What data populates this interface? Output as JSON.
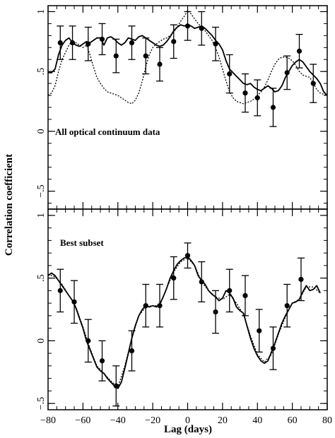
{
  "figure": {
    "ylabel": "Correlation coefficient",
    "xlabel": "Lag (days)"
  },
  "chart_data": [
    {
      "type": "line",
      "panel": "top",
      "annotation": "All optical continuum data",
      "xlim": [
        -80,
        80
      ],
      "ylim": [
        -0.65,
        1.05
      ],
      "x_ticks": [
        -80,
        -60,
        -40,
        -20,
        0,
        20,
        40,
        60,
        80
      ],
      "x_tick_labels": [
        "",
        "",
        "",
        "",
        "",
        "",
        "",
        "",
        ""
      ],
      "y_ticks": [
        -0.5,
        0,
        0.5,
        1
      ],
      "y_tick_labels": [
        "−.5",
        "0",
        ".5",
        "1"
      ],
      "series": [
        {
          "style": "solid",
          "x": [
            -80,
            -78,
            -76,
            -74,
            -72,
            -70,
            -68,
            -66,
            -64,
            -62,
            -60,
            -58,
            -56,
            -54,
            -52,
            -50,
            -48,
            -46,
            -44,
            -42,
            -40,
            -38,
            -36,
            -34,
            -32,
            -30,
            -28,
            -26,
            -24,
            -22,
            -20,
            -18,
            -16,
            -14,
            -12,
            -10,
            -8,
            -6,
            -4,
            -2,
            0,
            2,
            4,
            6,
            8,
            10,
            12,
            14,
            16,
            18,
            20,
            22,
            24,
            26,
            28,
            30,
            32,
            34,
            36,
            38,
            40,
            42,
            44,
            46,
            48,
            50,
            52,
            54,
            56,
            58,
            60,
            62,
            64,
            66,
            68,
            70,
            72,
            74,
            76,
            78,
            80
          ],
          "y": [
            0.49,
            0.49,
            0.52,
            0.64,
            0.72,
            0.76,
            0.78,
            0.74,
            0.72,
            0.71,
            0.73,
            0.75,
            0.74,
            0.76,
            0.78,
            0.78,
            0.72,
            0.78,
            0.79,
            0.77,
            0.74,
            0.72,
            0.74,
            0.78,
            0.77,
            0.76,
            0.79,
            0.8,
            0.78,
            0.76,
            0.74,
            0.72,
            0.71,
            0.72,
            0.75,
            0.79,
            0.84,
            0.87,
            0.89,
            0.88,
            0.89,
            0.88,
            0.86,
            0.87,
            0.88,
            0.86,
            0.83,
            0.8,
            0.76,
            0.73,
            0.68,
            0.59,
            0.52,
            0.49,
            0.46,
            0.43,
            0.4,
            0.39,
            0.4,
            0.37,
            0.35,
            0.34,
            0.36,
            0.38,
            0.36,
            0.33,
            0.34,
            0.38,
            0.45,
            0.5,
            0.55,
            0.58,
            0.6,
            0.58,
            0.54,
            0.5,
            0.47,
            0.44,
            0.4,
            0.33,
            0.3
          ]
        },
        {
          "style": "dotted",
          "x": [
            -80,
            -78,
            -76,
            -74,
            -72,
            -70,
            -68,
            -66,
            -64,
            -62,
            -60,
            -58,
            -56,
            -54,
            -52,
            -50,
            -48,
            -46,
            -44,
            -42,
            -40,
            -38,
            -36,
            -34,
            -32,
            -30,
            -28,
            -26,
            -24,
            -22,
            -20,
            -18,
            -16,
            -14,
            -12,
            -10,
            -8,
            -6,
            -4,
            -2,
            0,
            2,
            4,
            6,
            8,
            10,
            12,
            14,
            16,
            18,
            20,
            22,
            24,
            26,
            28,
            30,
            32,
            34,
            36,
            38,
            40,
            42,
            44,
            46,
            48,
            50,
            52,
            54,
            56,
            58,
            60,
            62,
            64,
            66,
            68,
            70,
            72,
            74,
            76,
            78,
            80
          ],
          "y": [
            0.3,
            0.32,
            0.38,
            0.5,
            0.6,
            0.66,
            0.72,
            0.76,
            0.74,
            0.72,
            0.7,
            0.72,
            0.64,
            0.54,
            0.45,
            0.4,
            0.36,
            0.33,
            0.32,
            0.31,
            0.3,
            0.28,
            0.26,
            0.24,
            0.23,
            0.26,
            0.32,
            0.42,
            0.54,
            0.64,
            0.7,
            0.73,
            0.75,
            0.77,
            0.78,
            0.8,
            0.83,
            0.87,
            0.92,
            0.96,
            1.01,
            0.98,
            0.94,
            0.9,
            0.87,
            0.84,
            0.8,
            0.76,
            0.7,
            0.62,
            0.52,
            0.42,
            0.33,
            0.28,
            0.25,
            0.24,
            0.23,
            0.24,
            0.25,
            0.27,
            0.3,
            0.33,
            0.37,
            0.43,
            0.5,
            0.56,
            0.6,
            0.62,
            0.62,
            0.61,
            0.59,
            0.55,
            0.5,
            0.47,
            0.46,
            0.45,
            0.4,
            0.35,
            0.32,
            0.31,
            0.3
          ]
        }
      ],
      "points": {
        "x": [
          -73,
          -66,
          -57,
          -49,
          -41,
          -32,
          -24,
          -16,
          -8,
          0,
          8,
          16,
          24,
          33,
          40,
          49,
          57,
          64,
          72
        ],
        "y": [
          0.74,
          0.74,
          0.73,
          0.77,
          0.63,
          0.74,
          0.63,
          0.56,
          0.75,
          0.88,
          0.86,
          0.73,
          0.48,
          0.32,
          0.28,
          0.2,
          0.49,
          0.67,
          0.4
        ],
        "err": [
          0.14,
          0.14,
          0.14,
          0.13,
          0.14,
          0.14,
          0.15,
          0.14,
          0.14,
          0.12,
          0.14,
          0.14,
          0.16,
          0.16,
          0.15,
          0.16,
          0.14,
          0.14,
          0.16
        ]
      }
    },
    {
      "type": "line",
      "panel": "bottom",
      "annotation": "Best subset",
      "xlim": [
        -80,
        80
      ],
      "ylim": [
        -0.55,
        1.05
      ],
      "x_ticks": [
        -80,
        -60,
        -40,
        -20,
        0,
        20,
        40,
        60,
        80
      ],
      "x_tick_labels": [
        "−80",
        "−60",
        "−40",
        "−20",
        "0",
        "20",
        "40",
        "60",
        "80"
      ],
      "y_ticks": [
        -0.5,
        0,
        0.5,
        1
      ],
      "y_tick_labels": [
        "−.5",
        "0",
        ".5",
        "1"
      ],
      "series": [
        {
          "style": "solid",
          "x": [
            -80,
            -78,
            -76,
            -74,
            -72,
            -70,
            -68,
            -66,
            -64,
            -62,
            -60,
            -58,
            -56,
            -54,
            -52,
            -50,
            -48,
            -46,
            -44,
            -42,
            -40,
            -38,
            -36,
            -34,
            -32,
            -30,
            -28,
            -26,
            -24,
            -22,
            -20,
            -18,
            -16,
            -14,
            -12,
            -10,
            -8,
            -6,
            -4,
            -2,
            0,
            2,
            4,
            6,
            8,
            10,
            12,
            14,
            16,
            18,
            20,
            22,
            24,
            26,
            28,
            30,
            32,
            34,
            36,
            38,
            40,
            42,
            44,
            46,
            48,
            50,
            52,
            54,
            56,
            58,
            60,
            62,
            64,
            66,
            68,
            70,
            72,
            74,
            76
          ],
          "y": [
            0.52,
            0.54,
            0.52,
            0.48,
            0.44,
            0.4,
            0.36,
            0.32,
            0.26,
            0.18,
            0.1,
            0.0,
            -0.07,
            -0.14,
            -0.21,
            -0.24,
            -0.26,
            -0.3,
            -0.33,
            -0.36,
            -0.38,
            -0.33,
            -0.22,
            -0.1,
            0.02,
            0.12,
            0.2,
            0.25,
            0.28,
            0.27,
            0.28,
            0.27,
            0.29,
            0.35,
            0.42,
            0.5,
            0.56,
            0.61,
            0.64,
            0.66,
            0.67,
            0.64,
            0.6,
            0.52,
            0.48,
            0.45,
            0.4,
            0.37,
            0.35,
            0.32,
            0.34,
            0.4,
            0.38,
            0.34,
            0.27,
            0.24,
            0.22,
            0.12,
            0.02,
            -0.06,
            -0.12,
            -0.16,
            -0.18,
            -0.16,
            -0.09,
            -0.02,
            0.06,
            0.14,
            0.2,
            0.25,
            0.3,
            0.31,
            0.33,
            0.39,
            0.44,
            0.4,
            0.41,
            0.44,
            0.38
          ]
        },
        {
          "style": "dotted",
          "x": [
            -80,
            -76,
            -72,
            -68,
            -64,
            -60,
            -56,
            -52,
            -48,
            -44,
            -40,
            -36,
            -32,
            -28,
            -24,
            -20,
            -16,
            -12,
            -8,
            -4,
            0,
            4,
            8,
            12,
            16,
            20,
            24,
            28,
            32,
            36,
            40,
            44,
            48,
            52,
            56,
            60,
            64,
            68,
            72,
            76
          ],
          "y": [
            0.53,
            0.51,
            0.45,
            0.36,
            0.27,
            0.11,
            -0.06,
            -0.2,
            -0.26,
            -0.32,
            -0.37,
            -0.2,
            0.02,
            0.2,
            0.27,
            0.28,
            0.28,
            0.42,
            0.55,
            0.63,
            0.66,
            0.6,
            0.47,
            0.4,
            0.35,
            0.33,
            0.37,
            0.3,
            0.21,
            0.04,
            -0.11,
            -0.17,
            -0.11,
            0.05,
            0.19,
            0.3,
            0.33,
            0.43,
            0.43,
            0.38
          ]
        }
      ],
      "points": {
        "x": [
          -73,
          -65,
          -57,
          -49,
          -41,
          -32,
          -24,
          -16,
          -8,
          0,
          8,
          16,
          24,
          33,
          41,
          49,
          57,
          65
        ],
        "y": [
          0.4,
          0.31,
          0.0,
          -0.16,
          -0.36,
          -0.08,
          0.28,
          0.28,
          0.5,
          0.68,
          0.47,
          0.23,
          0.4,
          0.36,
          0.08,
          -0.06,
          0.28,
          0.49
        ],
        "err": [
          0.17,
          0.17,
          0.17,
          0.16,
          0.16,
          0.16,
          0.17,
          0.17,
          0.17,
          0.1,
          0.16,
          0.17,
          0.17,
          0.16,
          0.17,
          0.17,
          0.17,
          0.17
        ]
      }
    }
  ]
}
